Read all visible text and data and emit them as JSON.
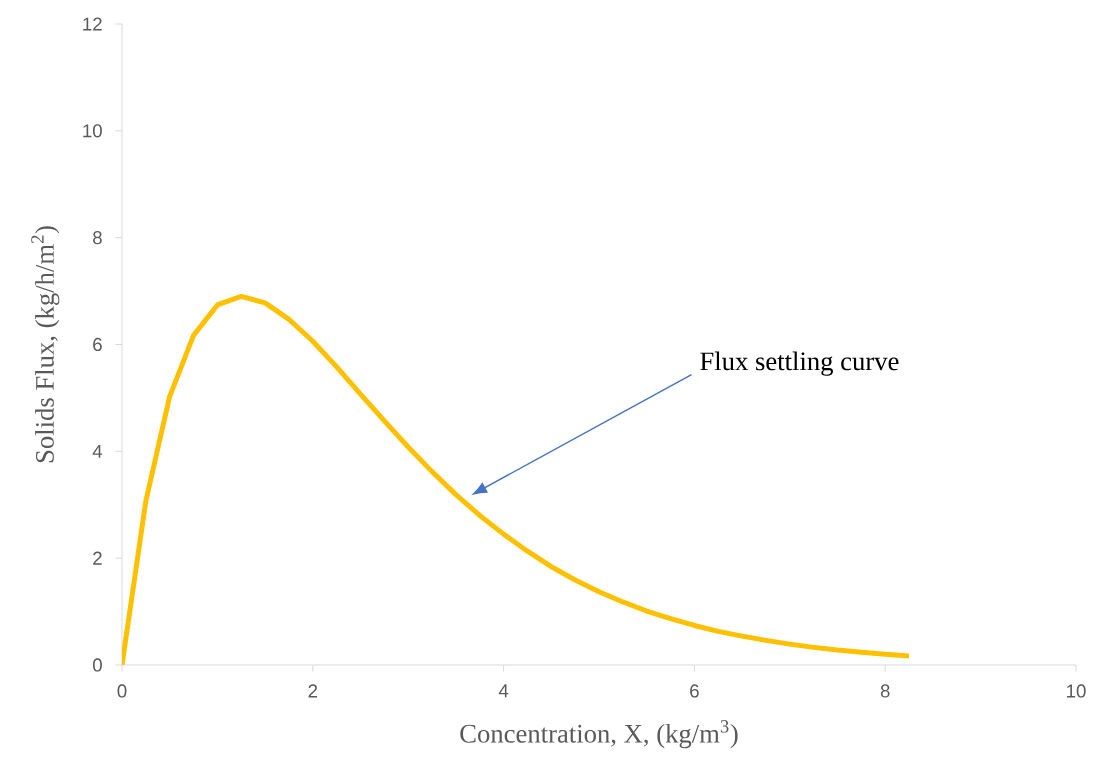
{
  "chart_data": {
    "type": "line",
    "xlabel": "Concentration, X, (kg/m$^{3}$)",
    "ylabel": "Solids Flux, (kg/h/m$^{2}$)",
    "x": [
      0,
      0.25,
      0.5,
      0.75,
      1.0,
      1.25,
      1.5,
      1.75,
      2.0,
      2.25,
      2.5,
      2.75,
      3.0,
      3.25,
      3.5,
      3.75,
      4.0,
      4.25,
      4.5,
      4.75,
      5.0,
      5.25,
      5.5,
      5.75,
      6.0,
      6.25,
      6.5,
      6.75,
      7.0,
      7.25,
      7.5,
      7.75,
      8.0,
      8.25
    ],
    "series": [
      {
        "color": "#ffc000",
        "values": [
          0,
          3.07,
          5.03,
          6.17,
          6.74,
          6.9,
          6.78,
          6.47,
          6.06,
          5.58,
          5.07,
          4.57,
          4.08,
          3.62,
          3.19,
          2.8,
          2.45,
          2.13,
          1.84,
          1.59,
          1.37,
          1.18,
          1.01,
          0.87,
          0.74,
          0.63,
          0.54,
          0.46,
          0.39,
          0.33,
          0.28,
          0.24,
          0.2,
          0.17
        ]
      }
    ],
    "xlim": [
      0,
      10
    ],
    "ylim": [
      0,
      12
    ],
    "xticks": [
      0,
      2,
      4,
      6,
      8,
      10
    ],
    "yticks": [
      0,
      2,
      4,
      6,
      8,
      10,
      12
    ],
    "grid": false,
    "legend": false,
    "marker": "none",
    "line_style": "solid",
    "annotations": [
      "Flux settling curve"
    ]
  }
}
